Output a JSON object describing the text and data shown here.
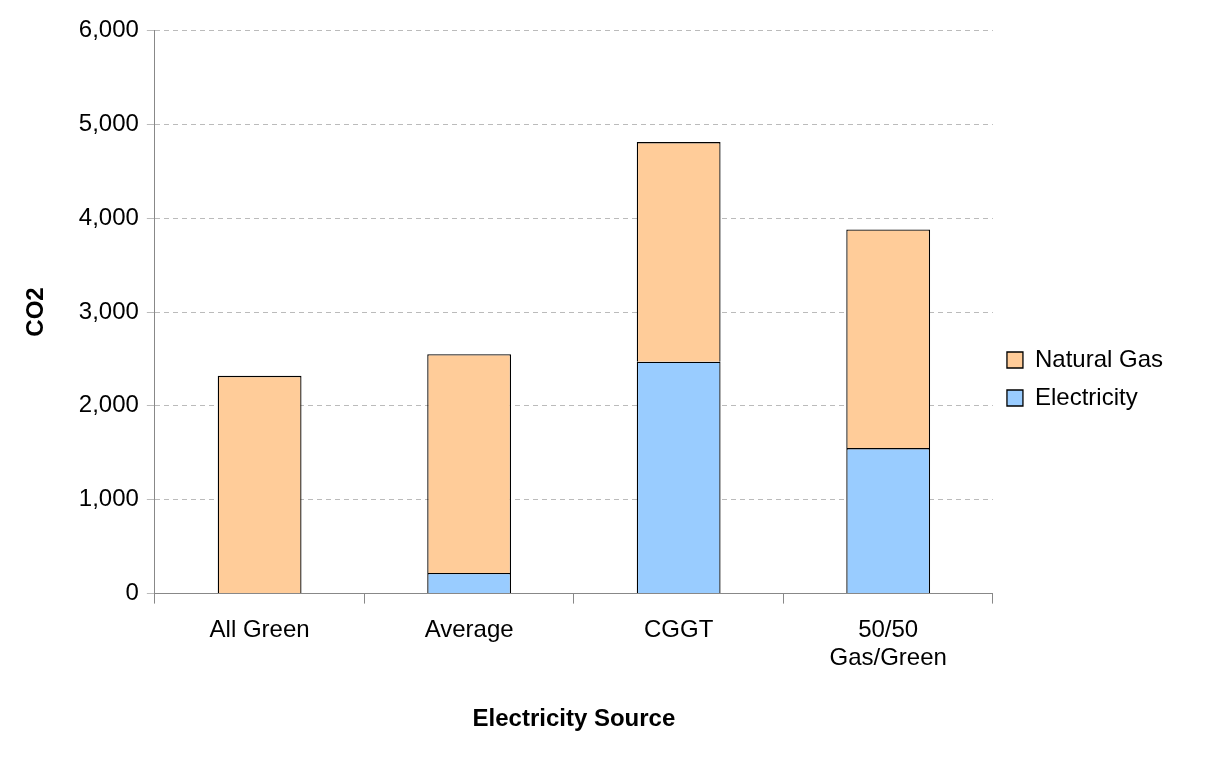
{
  "chart_data": {
    "type": "bar",
    "stacked": true,
    "xlabel": "Electricity Source",
    "ylabel": "CO2",
    "categories": [
      "All Green",
      "Average",
      "CGGT",
      "50/50 Gas/Green"
    ],
    "series": [
      {
        "name": "Electricity",
        "color": "#99ccff",
        "values": [
          0,
          220,
          2470,
          1550
        ]
      },
      {
        "name": "Natural Gas",
        "color": "#ffcc99",
        "values": [
          2320,
          2330,
          2340,
          2330
        ]
      }
    ],
    "ylim": [
      0,
      6000
    ],
    "yticks": [
      {
        "value": 0,
        "label": "0"
      },
      {
        "value": 1000,
        "label": "1,000"
      },
      {
        "value": 2000,
        "label": "2,000"
      },
      {
        "value": 3000,
        "label": "3,000"
      },
      {
        "value": 4000,
        "label": "4,000"
      },
      {
        "value": 5000,
        "label": "5,000"
      },
      {
        "value": 6000,
        "label": "6,000"
      }
    ],
    "grid": "y",
    "legend": "right"
  }
}
